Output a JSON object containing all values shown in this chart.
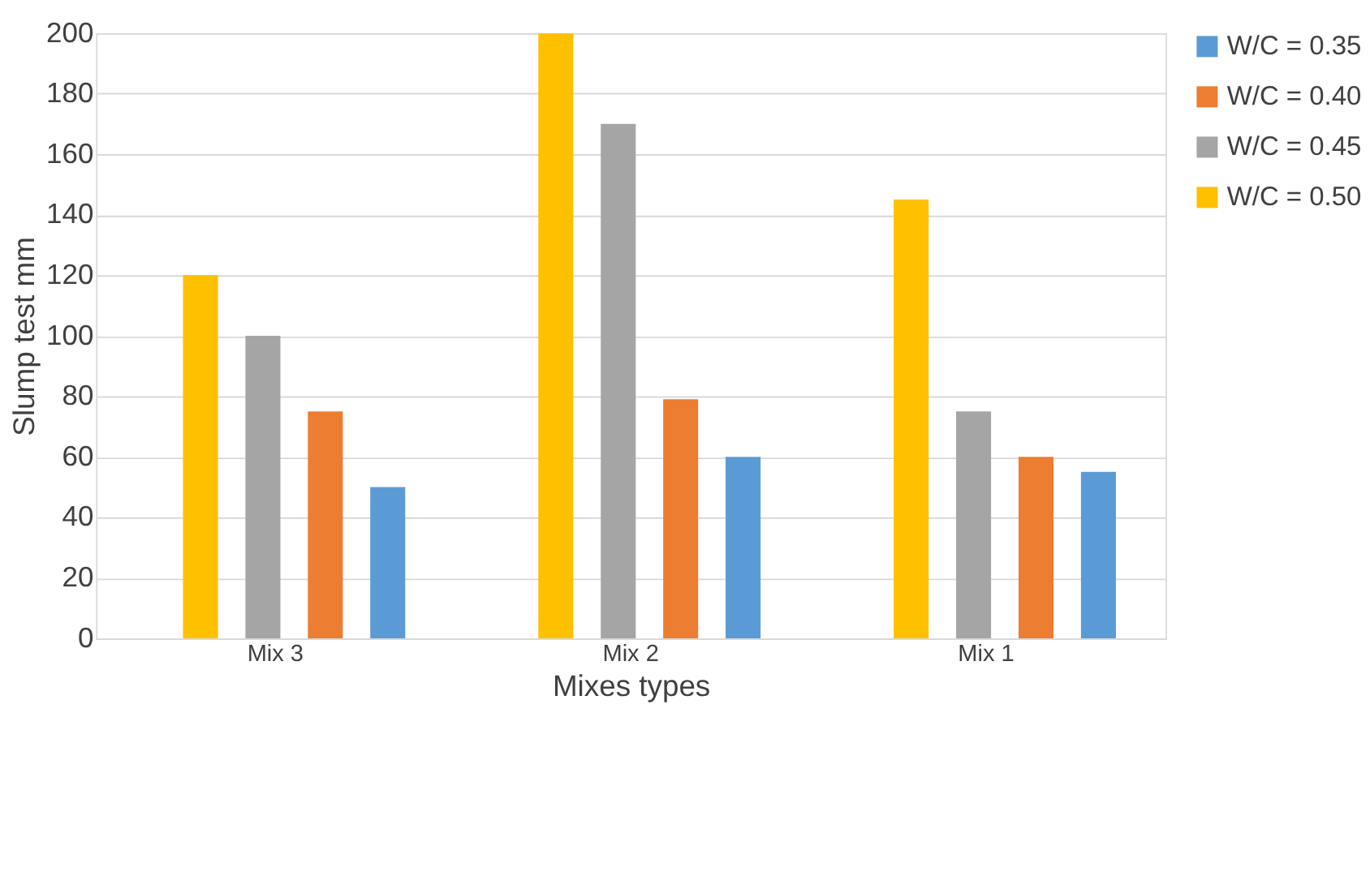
{
  "chart_data": {
    "type": "bar",
    "xlabel": "Mixes types",
    "ylabel": "Slump test mm",
    "categories": [
      "Mix 3",
      "Mix 2",
      "Mix 1"
    ],
    "series": [
      {
        "name": "W/C = 0.35",
        "color": "#5b9bd5",
        "values": [
          50,
          60,
          55
        ]
      },
      {
        "name": "W/C = 0.40",
        "color": "#ed7d31",
        "values": [
          75,
          79,
          60
        ]
      },
      {
        "name": "W/C = 0.45",
        "color": "#a5a5a5",
        "values": [
          100,
          170,
          75
        ]
      },
      {
        "name": "W/C = 0.50",
        "color": "#ffc000",
        "values": [
          120,
          200,
          145
        ]
      }
    ],
    "ylim": [
      0,
      200
    ],
    "yticks": [
      0,
      20,
      40,
      60,
      80,
      100,
      120,
      140,
      160,
      180,
      200
    ],
    "grid": "y",
    "legend": "top right"
  }
}
